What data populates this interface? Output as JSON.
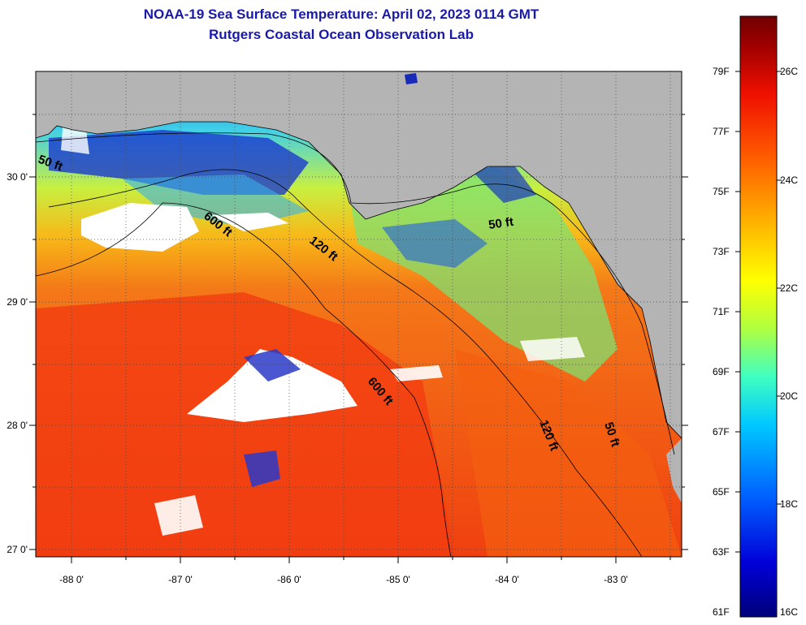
{
  "title": {
    "line1": "NOAA-19 Sea Surface Temperature:  April 02, 2023 0114 GMT",
    "line2": "Rutgers Coastal Ocean Observation Lab"
  },
  "longitude_labels": [
    "-88 0'",
    "-87 0'",
    "-86 0'",
    "-85 0'",
    "-84 0'",
    "-83 0'"
  ],
  "latitude_labels": [
    "30 0'",
    "29 0'",
    "28 0'",
    "27 0'"
  ],
  "depth_labels": [
    "50 ft",
    "600 ft",
    "120 ft",
    "50 ft",
    "600 ft",
    "120 ft",
    "50 ft"
  ],
  "colorbar": {
    "fahrenheit": [
      "79F",
      "77F",
      "75F",
      "73F",
      "71F",
      "69F",
      "67F",
      "65F",
      "63F",
      "61F"
    ],
    "celsius": [
      "26C",
      "24C",
      "22C",
      "20C",
      "18C",
      "16C"
    ],
    "colors": [
      "#00007a",
      "#0000d8",
      "#0060ff",
      "#00c8ff",
      "#40ffc0",
      "#b0ff40",
      "#ffff00",
      "#ffb000",
      "#ff6000",
      "#f01000",
      "#a00000",
      "#700000"
    ]
  },
  "colors": {
    "land": "#b4b4b4",
    "cloud": "#ffffff",
    "warm_water": "#f25a12",
    "title": "#1a1aa8"
  }
}
